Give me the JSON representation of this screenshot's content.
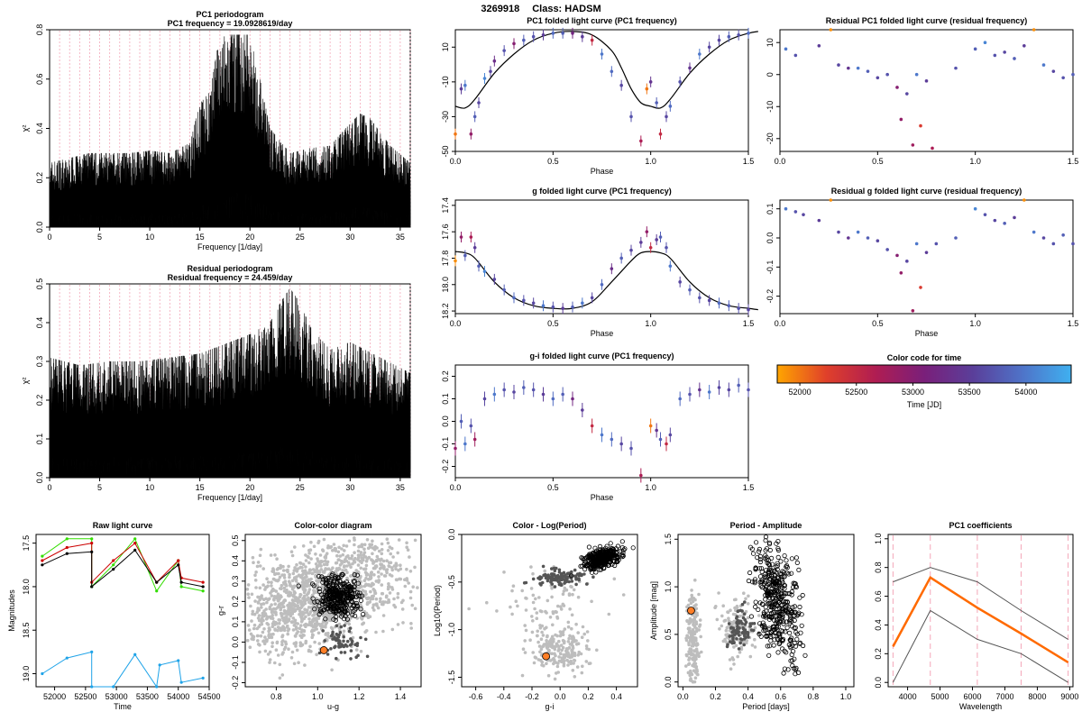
{
  "header": {
    "id": "3269918",
    "class_label": "Class: HADSM"
  },
  "colors": {
    "black": "#000000",
    "grid_pink": "#f4a6b8",
    "grey_light": "#bdbdbd",
    "grey_dark": "#555555",
    "orange_fill": "#ff7f27",
    "orange_line": "#ff6a00",
    "green": "#33dd00",
    "red": "#cc0000",
    "blue": "#1fa3e8",
    "colorscale": [
      "#ffa500",
      "#e0402a",
      "#b01d52",
      "#7a1f7a",
      "#5a3f9a",
      "#4f73c8",
      "#3fb0f0"
    ]
  },
  "colorbar": {
    "title": "Color code for time",
    "xlabel": "Time [JD]",
    "range": [
      51800,
      54400
    ],
    "ticks": [
      52000,
      52500,
      53000,
      53500,
      54000
    ]
  },
  "chart_data": [
    {
      "id": "pc1_periodogram",
      "type": "line",
      "title": "PC1 periodogram",
      "subtitle": "PC1 frequency = 19.0928619/day",
      "xlabel": "Frequency [1/day]",
      "ylabel": "χ²",
      "xlim": [
        0,
        36
      ],
      "ylim": [
        0,
        0.8
      ],
      "xticks": [
        0,
        5,
        10,
        15,
        20,
        25,
        30,
        35
      ],
      "yticks": [
        0.0,
        0.2,
        0.4,
        0.6,
        0.8
      ],
      "grid": "vertical dashed pink lines at integer frequencies",
      "x": [
        0.0,
        2.0,
        4.0,
        6.0,
        8.0,
        10.0,
        12.0,
        14.0,
        15.0,
        16.0,
        17.0,
        18.0,
        19.0,
        20.0,
        21.0,
        22.0,
        24.0,
        26.0,
        28.0,
        30.0,
        31.0,
        32.0,
        34.0,
        36.0
      ],
      "values": [
        0.26,
        0.28,
        0.3,
        0.3,
        0.3,
        0.31,
        0.3,
        0.34,
        0.5,
        0.55,
        0.78,
        0.78,
        0.78,
        0.78,
        0.6,
        0.4,
        0.3,
        0.32,
        0.33,
        0.42,
        0.46,
        0.44,
        0.33,
        0.26
      ]
    },
    {
      "id": "res_periodogram",
      "type": "line",
      "title": "Residual periodogram",
      "subtitle": "Residual frequency = 24.459/day",
      "xlabel": "Frequency [1/day]",
      "ylabel": "χ²",
      "xlim": [
        0,
        36
      ],
      "ylim": [
        0,
        0.5
      ],
      "xticks": [
        0,
        5,
        10,
        15,
        20,
        25,
        30,
        35
      ],
      "yticks": [
        0.0,
        0.1,
        0.2,
        0.3,
        0.4,
        0.5
      ],
      "grid": "vertical dashed pink lines at integer frequencies",
      "x": [
        0.0,
        3.0,
        6.0,
        9.0,
        12.0,
        15.0,
        18.0,
        20.0,
        22.0,
        23.0,
        24.0,
        25.0,
        26.0,
        28.0,
        30.0,
        33.0,
        36.0
      ],
      "values": [
        0.31,
        0.29,
        0.3,
        0.3,
        0.31,
        0.32,
        0.35,
        0.37,
        0.4,
        0.45,
        0.49,
        0.45,
        0.39,
        0.33,
        0.35,
        0.31,
        0.27
      ]
    },
    {
      "id": "pc1_folded",
      "type": "scatter",
      "title": "PC1 folded light curve (PC1 frequency)",
      "xlabel": "Phase",
      "ylabel": "",
      "xlim": [
        0,
        1.5
      ],
      "ylim": [
        -50,
        20
      ],
      "xticks": [
        0.0,
        0.5,
        1.0,
        1.5
      ],
      "yticks": [
        -50,
        -30,
        -10,
        10
      ],
      "model_x": [
        0.0,
        0.05,
        0.1,
        0.2,
        0.3,
        0.4,
        0.5,
        0.6,
        0.7,
        0.8,
        0.85,
        0.9,
        0.95,
        1.0,
        1.05,
        1.1,
        1.2,
        1.3,
        1.4,
        1.5,
        1.55
      ],
      "model_y": [
        -24,
        -25,
        -20,
        -5,
        6,
        14,
        18,
        19,
        17,
        8,
        -2,
        -14,
        -22,
        -24,
        -25,
        -20,
        -5,
        6,
        14,
        18,
        19
      ],
      "x": [
        0.0,
        0.03,
        0.05,
        0.08,
        0.1,
        0.12,
        0.15,
        0.18,
        0.2,
        0.25,
        0.3,
        0.35,
        0.4,
        0.45,
        0.5,
        0.55,
        0.6,
        0.65,
        0.7,
        0.75,
        0.8,
        0.85,
        0.9,
        0.95,
        0.98,
        1.0,
        1.03,
        1.05,
        1.08,
        1.1,
        1.15,
        1.2,
        1.25,
        1.3,
        1.35,
        1.4,
        1.45,
        1.5
      ],
      "y": [
        -40,
        -14,
        -12,
        -40,
        -30,
        -22,
        -8,
        -4,
        2,
        8,
        12,
        14,
        16,
        17,
        18,
        18,
        18,
        16,
        14,
        6,
        -4,
        -12,
        -30,
        -44,
        -14,
        -10,
        -22,
        -40,
        -30,
        -24,
        -10,
        -2,
        6,
        10,
        14,
        16,
        17,
        18
      ],
      "t": [
        52000,
        53500,
        54000,
        52900,
        53800,
        53600,
        54100,
        53600,
        53300,
        53700,
        53000,
        53800,
        53700,
        53500,
        53900,
        53800,
        53200,
        53500,
        52500,
        54000,
        53900,
        53600,
        53700,
        52700,
        52000,
        53400,
        53800,
        52500,
        53600,
        53900,
        53700,
        53400,
        54000,
        53600,
        53600,
        53800,
        53700,
        53900
      ]
    },
    {
      "id": "res_pc1_folded",
      "type": "scatter",
      "title": "Residual PC1 folded light curve (residual frequency)",
      "xlabel": "",
      "ylabel": "",
      "xlim": [
        0,
        1.5
      ],
      "ylim": [
        -24,
        14
      ],
      "xticks": [
        0.0,
        0.5,
        1.0,
        1.5
      ],
      "yticks": [
        -20,
        -10,
        0,
        10
      ],
      "x": [
        0.03,
        0.08,
        0.2,
        0.26,
        0.3,
        0.35,
        0.4,
        0.45,
        0.5,
        0.55,
        0.6,
        0.62,
        0.65,
        0.68,
        0.7,
        0.72,
        0.75,
        0.78,
        0.9,
        1.0,
        1.05,
        1.1,
        1.15,
        1.2,
        1.25,
        1.3,
        1.35,
        1.4,
        1.45,
        1.5
      ],
      "y": [
        8,
        6,
        9,
        14,
        3,
        2,
        2,
        1,
        -1,
        0,
        -4,
        -14,
        -6,
        -22,
        0,
        -16,
        -2,
        -23,
        2,
        8,
        10,
        6,
        7,
        5,
        9,
        14,
        3,
        1,
        -1,
        0
      ],
      "t": [
        54000,
        53700,
        53500,
        51900,
        53600,
        53400,
        54000,
        53800,
        53600,
        53700,
        53000,
        52900,
        53600,
        52800,
        54000,
        52300,
        53500,
        52700,
        53700,
        53800,
        54100,
        53700,
        53600,
        53800,
        53500,
        51900,
        54000,
        53600,
        53700,
        53800
      ]
    },
    {
      "id": "g_folded",
      "type": "scatter",
      "title": "g folded light curve (PC1 frequency)",
      "xlabel": "Phase",
      "ylabel": "",
      "xlim": [
        0,
        1.5
      ],
      "ylim": [
        18.22,
        17.36
      ],
      "xticks": [
        0.0,
        0.5,
        1.0,
        1.5
      ],
      "yticks": [
        17.4,
        17.6,
        17.8,
        18.0,
        18.2
      ],
      "model_x": [
        0.0,
        0.05,
        0.1,
        0.2,
        0.3,
        0.4,
        0.5,
        0.6,
        0.7,
        0.8,
        0.9,
        0.95,
        1.0,
        1.05,
        1.1,
        1.2,
        1.3,
        1.4,
        1.5,
        1.55
      ],
      "model_y": [
        17.75,
        17.76,
        17.8,
        17.98,
        18.1,
        18.16,
        18.18,
        18.18,
        18.13,
        17.98,
        17.82,
        17.76,
        17.75,
        17.76,
        17.8,
        17.98,
        18.1,
        18.16,
        18.18,
        18.19
      ],
      "x": [
        0.0,
        0.03,
        0.05,
        0.08,
        0.1,
        0.12,
        0.15,
        0.2,
        0.25,
        0.3,
        0.35,
        0.4,
        0.45,
        0.5,
        0.55,
        0.6,
        0.65,
        0.7,
        0.75,
        0.8,
        0.85,
        0.9,
        0.95,
        0.98,
        1.0,
        1.03,
        1.05,
        1.08,
        1.1,
        1.15,
        1.2,
        1.25,
        1.3,
        1.35,
        1.4,
        1.45,
        1.5
      ],
      "y": [
        17.82,
        17.64,
        17.78,
        17.64,
        17.72,
        17.86,
        17.9,
        17.96,
        18.04,
        18.1,
        18.12,
        18.14,
        18.16,
        18.17,
        18.18,
        18.17,
        18.14,
        18.1,
        18.0,
        17.88,
        17.8,
        17.74,
        17.68,
        17.6,
        17.72,
        17.66,
        17.64,
        17.72,
        17.86,
        17.98,
        18.04,
        18.1,
        18.12,
        18.14,
        18.16,
        18.18,
        18.19
      ],
      "t": [
        51900,
        52900,
        53800,
        52700,
        53500,
        53800,
        54100,
        53600,
        53800,
        53900,
        53700,
        53600,
        54000,
        53700,
        53500,
        53800,
        54000,
        53600,
        53900,
        53300,
        53800,
        53600,
        53500,
        52900,
        52500,
        53500,
        53800,
        53700,
        54000,
        53600,
        53800,
        53700,
        53600,
        53900,
        53800,
        53700,
        53600
      ]
    },
    {
      "id": "res_g_folded",
      "type": "scatter",
      "title": "Residual g folded light curve (residual frequency)",
      "xlabel": "Phase",
      "ylabel": "",
      "xlim": [
        0,
        1.5
      ],
      "ylim": [
        -0.26,
        0.13
      ],
      "xticks": [
        0.0,
        0.5,
        1.0,
        1.5
      ],
      "yticks": [
        -0.2,
        -0.1,
        0.0,
        0.1
      ],
      "x": [
        0.03,
        0.08,
        0.12,
        0.2,
        0.26,
        0.3,
        0.35,
        0.4,
        0.45,
        0.5,
        0.55,
        0.6,
        0.62,
        0.65,
        0.68,
        0.7,
        0.72,
        0.75,
        0.8,
        0.9,
        1.0,
        1.05,
        1.1,
        1.15,
        1.2,
        1.25,
        1.3,
        1.35,
        1.4,
        1.45,
        1.5
      ],
      "y": [
        0.1,
        0.09,
        0.08,
        0.06,
        0.13,
        0.02,
        0.0,
        0.02,
        0.0,
        -0.01,
        -0.04,
        -0.06,
        -0.12,
        -0.08,
        -0.25,
        -0.02,
        -0.17,
        -0.05,
        -0.02,
        0.0,
        0.1,
        0.08,
        0.06,
        0.05,
        0.07,
        0.13,
        0.02,
        0.0,
        -0.02,
        0.01,
        -0.02
      ],
      "t": [
        54000,
        53700,
        53600,
        53500,
        51900,
        53600,
        53400,
        54000,
        53800,
        53600,
        53700,
        53000,
        52900,
        53600,
        52800,
        54000,
        52300,
        53500,
        53700,
        53800,
        54100,
        53700,
        53600,
        53800,
        53500,
        51900,
        54000,
        53600,
        53700,
        53800,
        53700
      ]
    },
    {
      "id": "gi_folded",
      "type": "scatter",
      "title": "g-i folded light curve (PC1 frequency)",
      "xlabel": "Phase",
      "ylabel": "",
      "xlim": [
        0,
        1.5
      ],
      "ylim": [
        -0.25,
        0.25
      ],
      "xticks": [
        0.0,
        0.5,
        1.0,
        1.5
      ],
      "yticks": [
        -0.2,
        -0.1,
        0.0,
        0.1,
        0.2
      ],
      "x": [
        0.0,
        0.03,
        0.05,
        0.08,
        0.1,
        0.15,
        0.2,
        0.25,
        0.3,
        0.35,
        0.4,
        0.45,
        0.5,
        0.55,
        0.6,
        0.65,
        0.7,
        0.75,
        0.8,
        0.85,
        0.9,
        0.95,
        1.0,
        1.03,
        1.05,
        1.08,
        1.1,
        1.15,
        1.2,
        1.25,
        1.3,
        1.35,
        1.4,
        1.45,
        1.5
      ],
      "y": [
        -0.12,
        0.0,
        -0.1,
        -0.02,
        -0.08,
        0.1,
        0.12,
        0.14,
        0.13,
        0.15,
        0.14,
        0.12,
        0.1,
        0.12,
        0.1,
        0.05,
        -0.02,
        -0.06,
        -0.08,
        -0.1,
        -0.12,
        -0.24,
        -0.02,
        -0.04,
        -0.08,
        -0.1,
        -0.06,
        0.1,
        0.12,
        0.14,
        0.13,
        0.15,
        0.14,
        0.16,
        0.14
      ],
      "t": [
        52900,
        53800,
        54000,
        53700,
        52800,
        53600,
        54000,
        53700,
        53600,
        53800,
        53700,
        53500,
        53900,
        53800,
        53200,
        53500,
        52500,
        54000,
        53900,
        53600,
        53700,
        52700,
        52000,
        53400,
        53800,
        52500,
        53600,
        53900,
        53700,
        53400,
        54000,
        53600,
        53600,
        53800,
        53700
      ]
    },
    {
      "id": "raw_lc",
      "type": "line",
      "title": "Raw light curve",
      "xlabel": "Time",
      "ylabel": "Magnitudes",
      "xlim": [
        51700,
        54500
      ],
      "ylim": [
        19.15,
        17.4
      ],
      "xticks": [
        52000,
        52500,
        53000,
        53500,
        54000,
        54500
      ],
      "yticks": [
        17.5,
        18.0,
        18.5,
        19.0
      ],
      "series": [
        {
          "color_key": "green",
          "x": [
            51800,
            52200,
            52600,
            52600,
            52950,
            53300,
            53650,
            54000,
            54050,
            54400
          ],
          "values": [
            17.65,
            17.45,
            17.45,
            18.0,
            17.75,
            17.45,
            18.05,
            17.7,
            18.0,
            18.05
          ]
        },
        {
          "color_key": "red",
          "x": [
            51800,
            52200,
            52600,
            52600,
            52950,
            53300,
            53650,
            54000,
            54050,
            54400
          ],
          "values": [
            17.7,
            17.55,
            17.5,
            17.95,
            17.7,
            17.5,
            17.95,
            17.7,
            17.9,
            17.95
          ]
        },
        {
          "color_key": "black",
          "x": [
            51800,
            52200,
            52600,
            52600,
            52950,
            53300,
            53650,
            54000,
            54050,
            54400
          ],
          "values": [
            17.75,
            17.62,
            17.6,
            18.0,
            17.8,
            17.58,
            17.95,
            17.75,
            17.95,
            18.0
          ]
        },
        {
          "color_key": "blue",
          "x": [
            51800,
            52200,
            52600,
            52600,
            52950,
            53300,
            53650,
            53700,
            54000,
            54050,
            54400
          ],
          "values": [
            19.0,
            18.82,
            18.75,
            19.15,
            19.15,
            18.78,
            19.15,
            18.9,
            18.85,
            19.1,
            19.05
          ]
        }
      ]
    },
    {
      "id": "color_color",
      "type": "scatter",
      "title": "Color-color diagram",
      "xlabel": "u-g",
      "ylabel": "g-r",
      "xlim": [
        0.65,
        1.5
      ],
      "ylim": [
        -0.22,
        0.53
      ],
      "xticks": [
        0.8,
        1.0,
        1.2,
        1.4
      ],
      "yticks": [
        -0.2,
        -0.1,
        0.0,
        0.1,
        0.2,
        0.3,
        0.4,
        0.5
      ],
      "highlight": {
        "x": 1.03,
        "y": -0.04
      }
    },
    {
      "id": "color_logp",
      "type": "scatter",
      "title": "Color - Log(Period)",
      "xlabel": "g-i",
      "ylabel": "Log10(Period)",
      "xlim": [
        -0.7,
        0.55
      ],
      "ylim": [
        -1.6,
        0.0
      ],
      "xticks": [
        -0.6,
        -0.4,
        -0.2,
        0.0,
        0.2,
        0.4
      ],
      "yticks": [
        -1.5,
        -1.0,
        -0.5,
        0.0
      ],
      "highlight": {
        "x": -0.1,
        "y": -1.28
      }
    },
    {
      "id": "period_amp",
      "type": "scatter",
      "title": "Period - Amplitude",
      "xlabel": "Period [days]",
      "ylabel": "Amplitude [mag]",
      "xlim": [
        -0.03,
        1.05
      ],
      "ylim": [
        -0.05,
        1.55
      ],
      "xticks": [
        0.0,
        0.2,
        0.4,
        0.6,
        0.8,
        1.0
      ],
      "yticks": [
        0.0,
        0.5,
        1.0,
        1.5
      ],
      "highlight": {
        "x": 0.05,
        "y": 0.75
      }
    },
    {
      "id": "pc1_coeffs",
      "type": "line",
      "title": "PC1 coefficients",
      "xlabel": "Wavelength",
      "ylabel": "",
      "xlim": [
        3400,
        9100
      ],
      "ylim": [
        -0.03,
        1.03
      ],
      "xticks": [
        4000,
        5000,
        6000,
        7000,
        8000,
        9000
      ],
      "yticks": [
        0.0,
        0.2,
        0.4,
        0.6,
        0.8,
        1.0
      ],
      "vlines": [
        3550,
        4700,
        6150,
        7500,
        8950
      ],
      "series": [
        {
          "color_key": "grey_dark",
          "values": [
            0.7,
            0.8,
            0.7,
            0.5,
            0.3
          ]
        },
        {
          "color_key": "orange_line",
          "values": [
            0.25,
            0.73,
            0.52,
            0.34,
            0.14
          ]
        },
        {
          "color_key": "grey_dark",
          "values": [
            0.0,
            0.5,
            0.3,
            0.2,
            0.0
          ]
        }
      ],
      "x": [
        3550,
        4700,
        6150,
        7500,
        8950
      ]
    }
  ]
}
